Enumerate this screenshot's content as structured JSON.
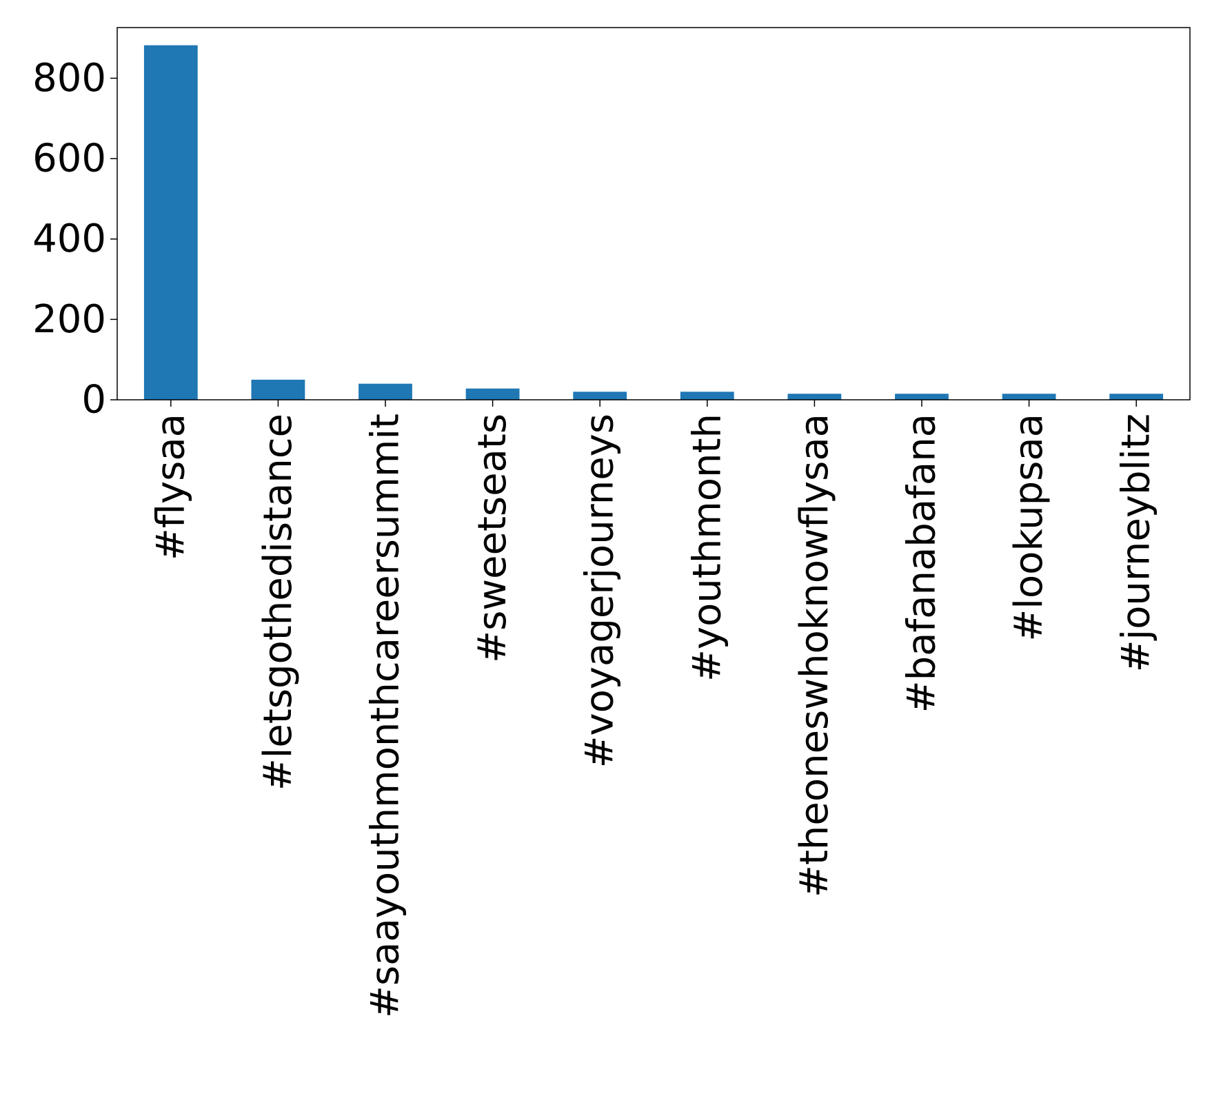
{
  "chart_data": {
    "type": "bar",
    "title": "",
    "xlabel": "",
    "ylabel": "",
    "categories": [
      "#flysaa",
      "#letsgothedistance",
      "#saayouthmonthcareersummit",
      "#sweetseats",
      "#voyagerjourneys",
      "#youthmonth",
      "#theoneswhoknowflysaa",
      "#bafanabafana",
      "#lookupsaa",
      "#journeyblitz"
    ],
    "values": [
      882,
      50,
      40,
      28,
      20,
      20,
      15,
      15,
      15,
      15
    ],
    "ylim": [
      0,
      926
    ],
    "yticks": [
      0,
      200,
      400,
      600,
      800
    ],
    "ytick_labels": [
      "0",
      "200",
      "400",
      "600",
      "800"
    ],
    "grid": false,
    "legend": "none",
    "bar_color": "#1f77b4"
  }
}
